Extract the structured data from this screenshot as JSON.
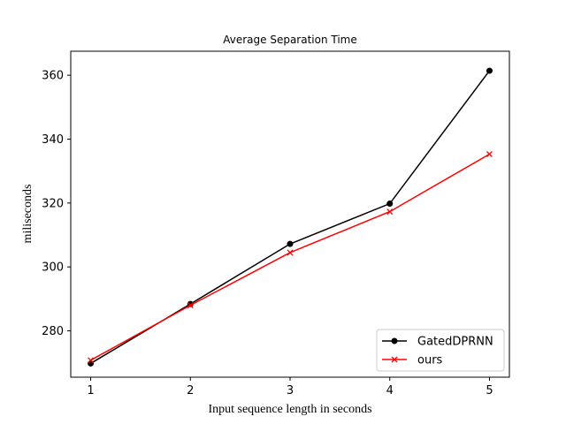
{
  "chart_data": {
    "type": "line",
    "title": "Average Separation Time",
    "xlabel": "Input sequence length in seconds",
    "ylabel": "miliseconds",
    "x": [
      1,
      2,
      3,
      4,
      5
    ],
    "x_ticks": [
      "1",
      "2",
      "3",
      "4",
      "5"
    ],
    "y_ticks": [
      280,
      300,
      320,
      340,
      360
    ],
    "xlim": [
      0.8,
      5.2
    ],
    "ylim": [
      265.5,
      367.5
    ],
    "grid": false,
    "legend_position": "lower-right",
    "series": [
      {
        "name": "GatedDPRNN",
        "values": [
          269.8,
          288.4,
          307.2,
          319.8,
          361.4
        ],
        "color": "#000000",
        "marker": "circle"
      },
      {
        "name": "ours",
        "values": [
          270.8,
          288.0,
          304.5,
          317.3,
          335.3
        ],
        "color": "#ff0000",
        "marker": "x"
      }
    ]
  }
}
